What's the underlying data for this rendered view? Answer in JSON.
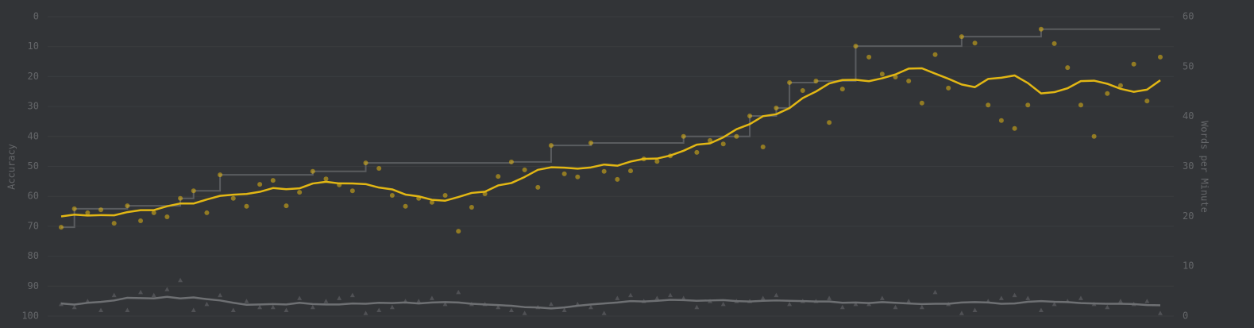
{
  "chart_data": {
    "type": "line",
    "ylabel": "Accuracy",
    "y2label": "Words per Minute",
    "ylim": [
      100,
      0
    ],
    "yticks": [
      0,
      10,
      20,
      30,
      40,
      50,
      60,
      70,
      80,
      90,
      100
    ],
    "y2lim": [
      0,
      60
    ],
    "y2ticks": [
      0,
      10,
      20,
      30,
      40,
      50,
      60
    ],
    "grid": true,
    "series": [
      {
        "name": "wpm",
        "axis": "y2",
        "color": "#e2b714",
        "values": [
          17.8,
          21.5,
          20.7,
          21.3,
          18.6,
          22.1,
          19.1,
          20.7,
          19.9,
          23.6,
          25.1,
          20.7,
          28.3,
          23.6,
          22.0,
          26.4,
          27.2,
          22.1,
          24.8,
          29.0,
          27.5,
          26.3,
          25.1,
          30.7,
          29.6,
          24.2,
          22.0,
          23.6,
          22.8,
          24.2,
          17.0,
          21.8,
          24.5,
          28.0,
          30.9,
          29.3,
          25.8,
          34.2,
          28.5,
          27.9,
          34.7,
          29.0,
          27.4,
          29.1,
          31.5,
          31.0,
          32.1,
          36.0,
          32.8,
          35.2,
          34.5,
          36.0,
          40.1,
          33.9,
          41.7,
          46.8,
          45.2,
          47.1,
          38.8,
          45.5,
          54.1,
          51.9,
          48.5,
          47.9,
          47.1,
          42.7,
          52.4,
          45.7,
          56.0,
          54.7,
          42.3,
          39.2,
          37.6,
          42.3,
          57.5,
          54.6,
          49.8,
          42.3,
          36.0,
          44.6,
          46.2,
          50.5,
          43.1,
          51.9
        ]
      },
      {
        "name": "acc",
        "axis": "y",
        "color": "#646669",
        "values": [
          96,
          97,
          95,
          98,
          93,
          98,
          92,
          93,
          91,
          88,
          98,
          96,
          93,
          98,
          95,
          97,
          97,
          98,
          94,
          97,
          95,
          94,
          93,
          99,
          98,
          97,
          95,
          95,
          94,
          96,
          92,
          96,
          96,
          97,
          98,
          99,
          97,
          96,
          98,
          96,
          97,
          99,
          94,
          93,
          95,
          94,
          93,
          94,
          97,
          95,
          96,
          95,
          95,
          94,
          93,
          96,
          95,
          95,
          94,
          97,
          96,
          96,
          94,
          97,
          95,
          97,
          92,
          96,
          99,
          98,
          95,
          94,
          93,
          94,
          98,
          96,
          95,
          94,
          96,
          97,
          95,
          96,
          95,
          99
        ]
      }
    ]
  }
}
